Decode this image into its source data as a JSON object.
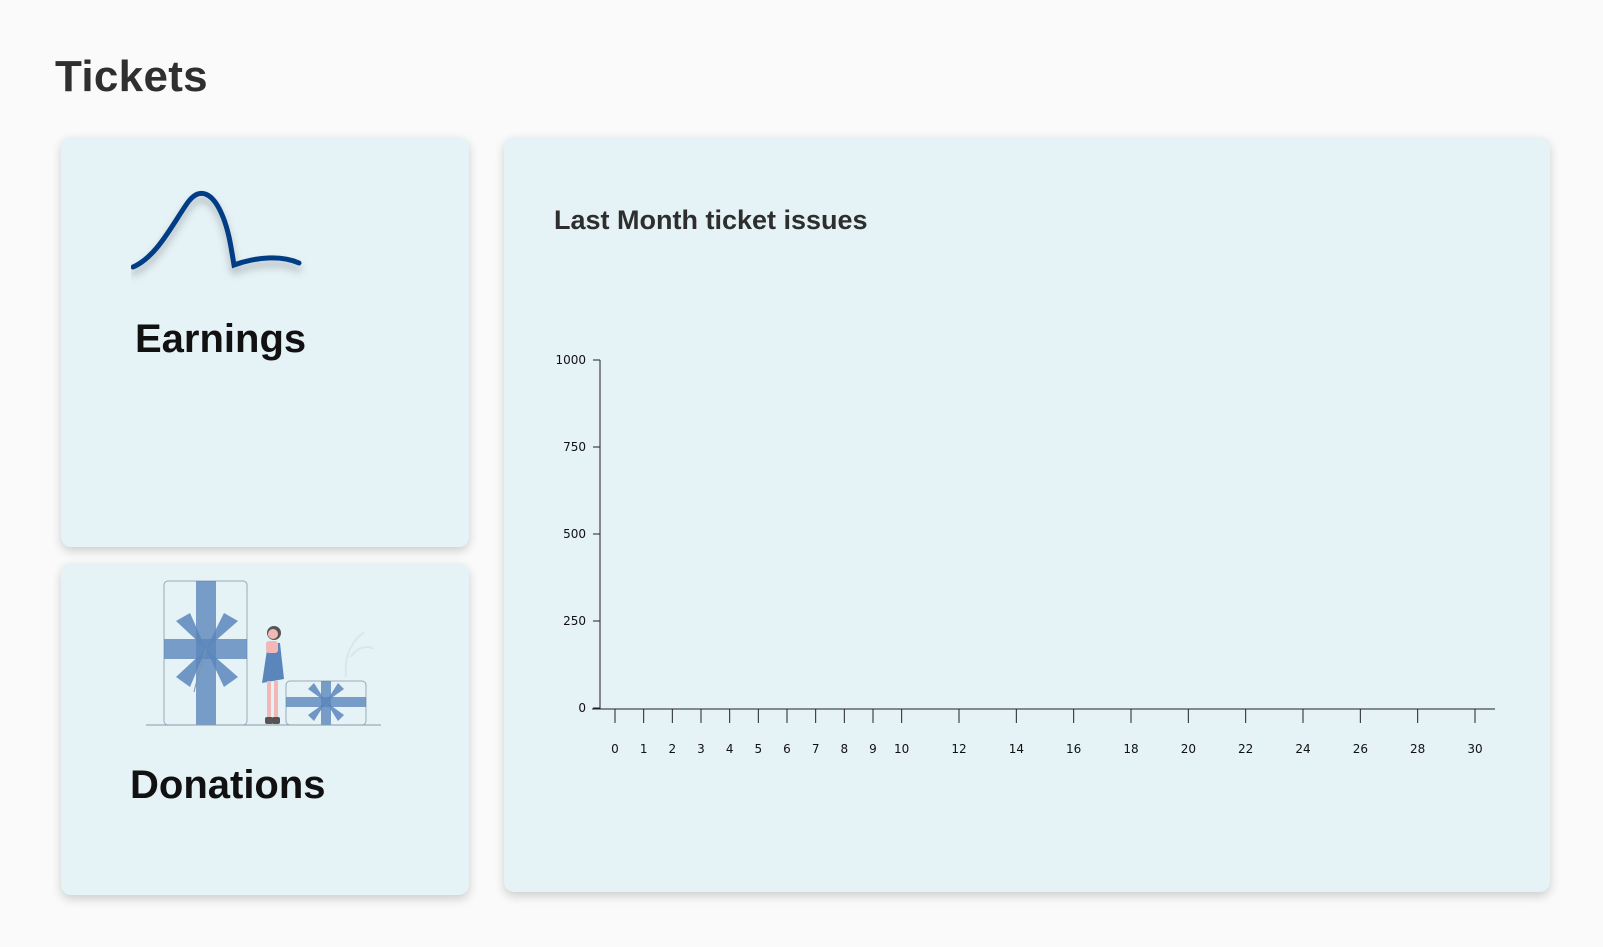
{
  "page": {
    "title": "Tickets"
  },
  "cards": {
    "earnings": {
      "label": "Earnings",
      "icon": "line-wave-icon"
    },
    "donations": {
      "label": "Donations",
      "icon": "gift-boxes-illustration"
    }
  },
  "chart_data": {
    "type": "line",
    "title": "Last Month ticket issues",
    "xlabel": "",
    "ylabel": "",
    "x_ticks": [
      0,
      1,
      2,
      3,
      4,
      5,
      6,
      7,
      8,
      9,
      10,
      12,
      14,
      16,
      18,
      20,
      22,
      24,
      26,
      28,
      30
    ],
    "y_ticks": [
      0,
      250,
      500,
      750,
      1000
    ],
    "xlim": [
      0,
      30
    ],
    "ylim": [
      0,
      1000
    ],
    "series": [],
    "grid": false
  },
  "colors": {
    "accent": "#003e85",
    "card_bg": "#e5f2f6",
    "gift_blue": "#5b86bb"
  }
}
